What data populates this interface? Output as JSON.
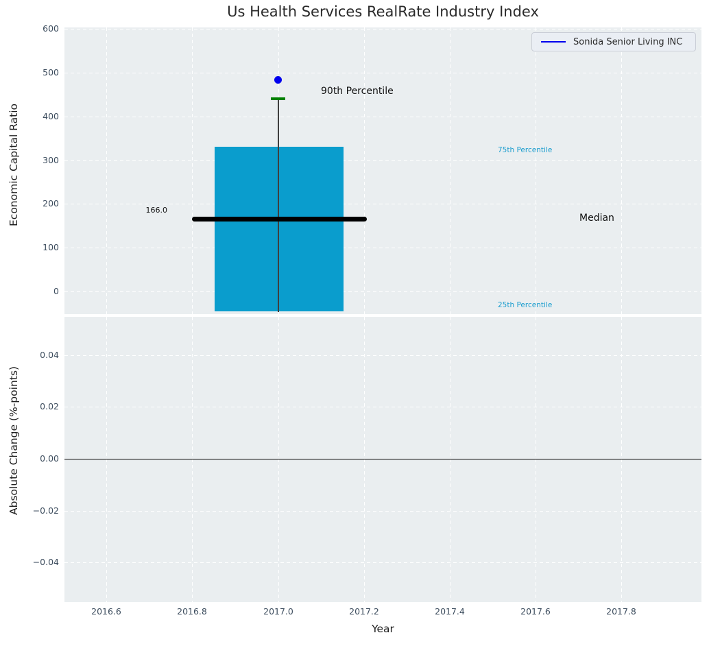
{
  "title": "Us Health Services RealRate Industry Index",
  "legend": {
    "label": "Sonida Senior Living INC",
    "line_color": "#0000ee"
  },
  "top_plot": {
    "ylabel": "Economic Capital Ratio",
    "yticks": [
      "600",
      "500",
      "400",
      "300",
      "200",
      "100",
      "0"
    ],
    "annotations": {
      "p90_label": "90th Percentile",
      "p75_label": "75th Percentile",
      "median_label": "Median",
      "p25_label": "25th Percentile",
      "median_value_label": "166.0"
    }
  },
  "bottom_plot": {
    "ylabel": "Absolute Change (%-points)",
    "xlabel": "Year",
    "yticks": [
      "0.04",
      "0.02",
      "0.00",
      "−0.02",
      "−0.04"
    ],
    "xticks": [
      "2016.6",
      "2016.8",
      "2017.0",
      "2017.2",
      "2017.4",
      "2017.6",
      "2017.8"
    ]
  },
  "colors": {
    "plot_background": "#eaeef0",
    "gridline": "#ffffff",
    "box_fill": "#0a9dcd",
    "median_line": "#000000",
    "p90_cap": "#008000",
    "company_point": "#0000ee",
    "percentile_text": "#1b9dce",
    "tick_text": "#3d4d5e"
  },
  "chart_data": [
    {
      "type": "box",
      "title": "Us Health Services RealRate Industry Index",
      "ylabel": "Economic Capital Ratio",
      "xlabel": "",
      "ylim": [
        -50,
        600
      ],
      "xlim": [
        2016.5,
        2018.0
      ],
      "grid": true,
      "legend_position": "upper right",
      "legend": [
        "Sonida Senior Living INC"
      ],
      "series": [
        {
          "name": "Industry distribution boxplot",
          "x": 2017.0,
          "box_width_years": 0.3,
          "p25": -40,
          "median": 166.0,
          "p75": 330,
          "p90": 440,
          "box_color": "#0a9dcd",
          "median_color": "#000000",
          "p90_cap_color": "#008000"
        },
        {
          "name": "Sonida Senior Living INC",
          "type": "scatter",
          "color": "#0000ee",
          "points": [
            {
              "x": 2017.0,
              "y": 480
            }
          ]
        }
      ],
      "annotations": [
        {
          "text": "90th Percentile",
          "x": 2017.1,
          "y": 440,
          "color": "#111111"
        },
        {
          "text": "75th Percentile",
          "x": 2017.51,
          "y": 321,
          "color": "#1b9dce"
        },
        {
          "text": "Median",
          "x": 2017.7,
          "y": 166,
          "color": "#111111"
        },
        {
          "text": "25th Percentile",
          "x": 2017.51,
          "y": -33,
          "color": "#1b9dce"
        },
        {
          "text": "166.0",
          "x": 2016.72,
          "y": 183,
          "color": "#111111"
        }
      ]
    },
    {
      "type": "line",
      "title": "",
      "ylabel": "Absolute Change (%-points)",
      "xlabel": "Year",
      "ylim": [
        -0.055,
        0.055
      ],
      "yticks": [
        0.04,
        0.02,
        0.0,
        -0.02,
        -0.04
      ],
      "xticks": [
        2016.6,
        2016.8,
        2017.0,
        2017.2,
        2017.4,
        2017.6,
        2017.8
      ],
      "grid": true,
      "zero_line_y": 0.0,
      "series": []
    }
  ]
}
